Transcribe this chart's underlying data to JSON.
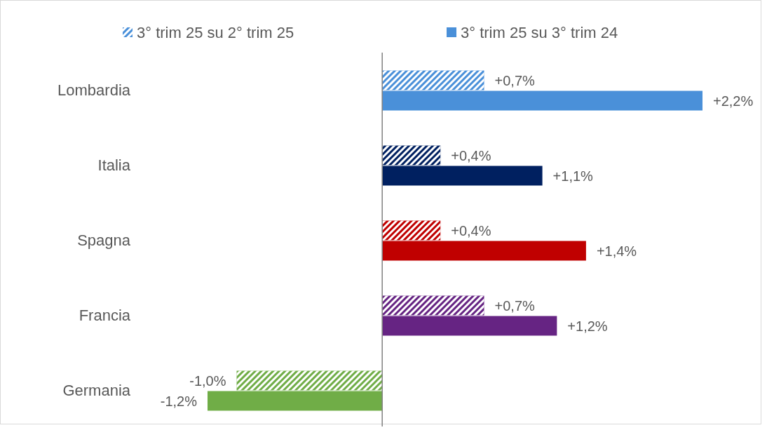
{
  "chart_data": {
    "type": "bar",
    "orientation": "horizontal",
    "categories": [
      "Lombardia",
      "Italia",
      "Spagna",
      "Francia",
      "Germania"
    ],
    "xlim": [
      -1.2,
      2.2
    ],
    "tick_labels": "y",
    "legend": "top",
    "series": [
      {
        "name": "3° trim 25 su 2° trim 25",
        "color": "#4a90d9",
        "colors": [
          "#4a90d9",
          "#002060",
          "#c00000",
          "#662483",
          "#70ad47"
        ],
        "values": [
          0.7,
          0.4,
          0.4,
          0.7,
          -1.0
        ],
        "value_labels": [
          "+0,7%",
          "+0,4%",
          "+0,4%",
          "+0,7%",
          "-1,0%"
        ]
      },
      {
        "name": "3° trim 25 su 3° trim 24",
        "color": "#4a90d9",
        "colors": [
          "#4a90d9",
          "#002060",
          "#c00000",
          "#662483",
          "#70ad47"
        ],
        "values": [
          2.2,
          1.1,
          1.4,
          1.2,
          -1.2
        ],
        "value_labels": [
          "+2,2%",
          "+1,1%",
          "+1,4%",
          "+1,2%",
          "-1,2%"
        ]
      }
    ]
  }
}
